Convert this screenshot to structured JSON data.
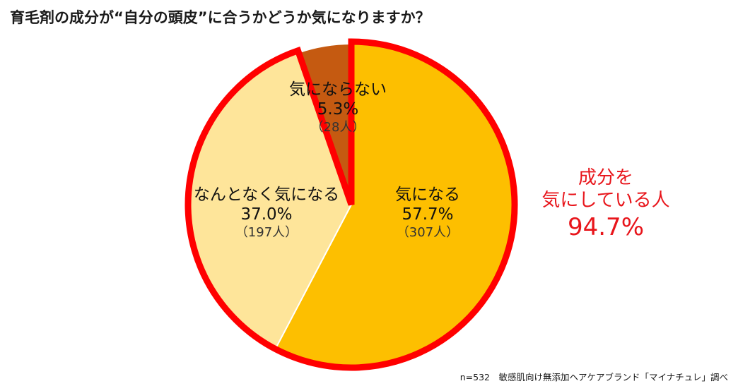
{
  "chart_data": {
    "type": "pie",
    "title": "育毛剤の成分が“自分の頭皮”に合うかどうか気になりますか？",
    "slices": [
      {
        "label": "気になる",
        "percent_label": "57.7%",
        "count_label": "（307人）",
        "value": 57.7,
        "count": 307,
        "color": "#fdbf00"
      },
      {
        "label": "なんとなく気になる",
        "percent_label": "37.0%",
        "count_label": "（197人）",
        "value": 37.0,
        "count": 197,
        "color": "#fee59a"
      },
      {
        "label": "気にならない",
        "percent_label": "5.3%",
        "count_label": "（28人）",
        "value": 5.3,
        "count": 28,
        "color": "#c55a11"
      }
    ],
    "highlight_color": "#ff0000"
  },
  "callout": {
    "line1": "成分を",
    "line2": "気にしている人",
    "value": "94.7%",
    "color": "#e8151b"
  },
  "source_note": "n=532　敏感肌向け無添加ヘアケアブランド「マイナチュレ」調べ"
}
